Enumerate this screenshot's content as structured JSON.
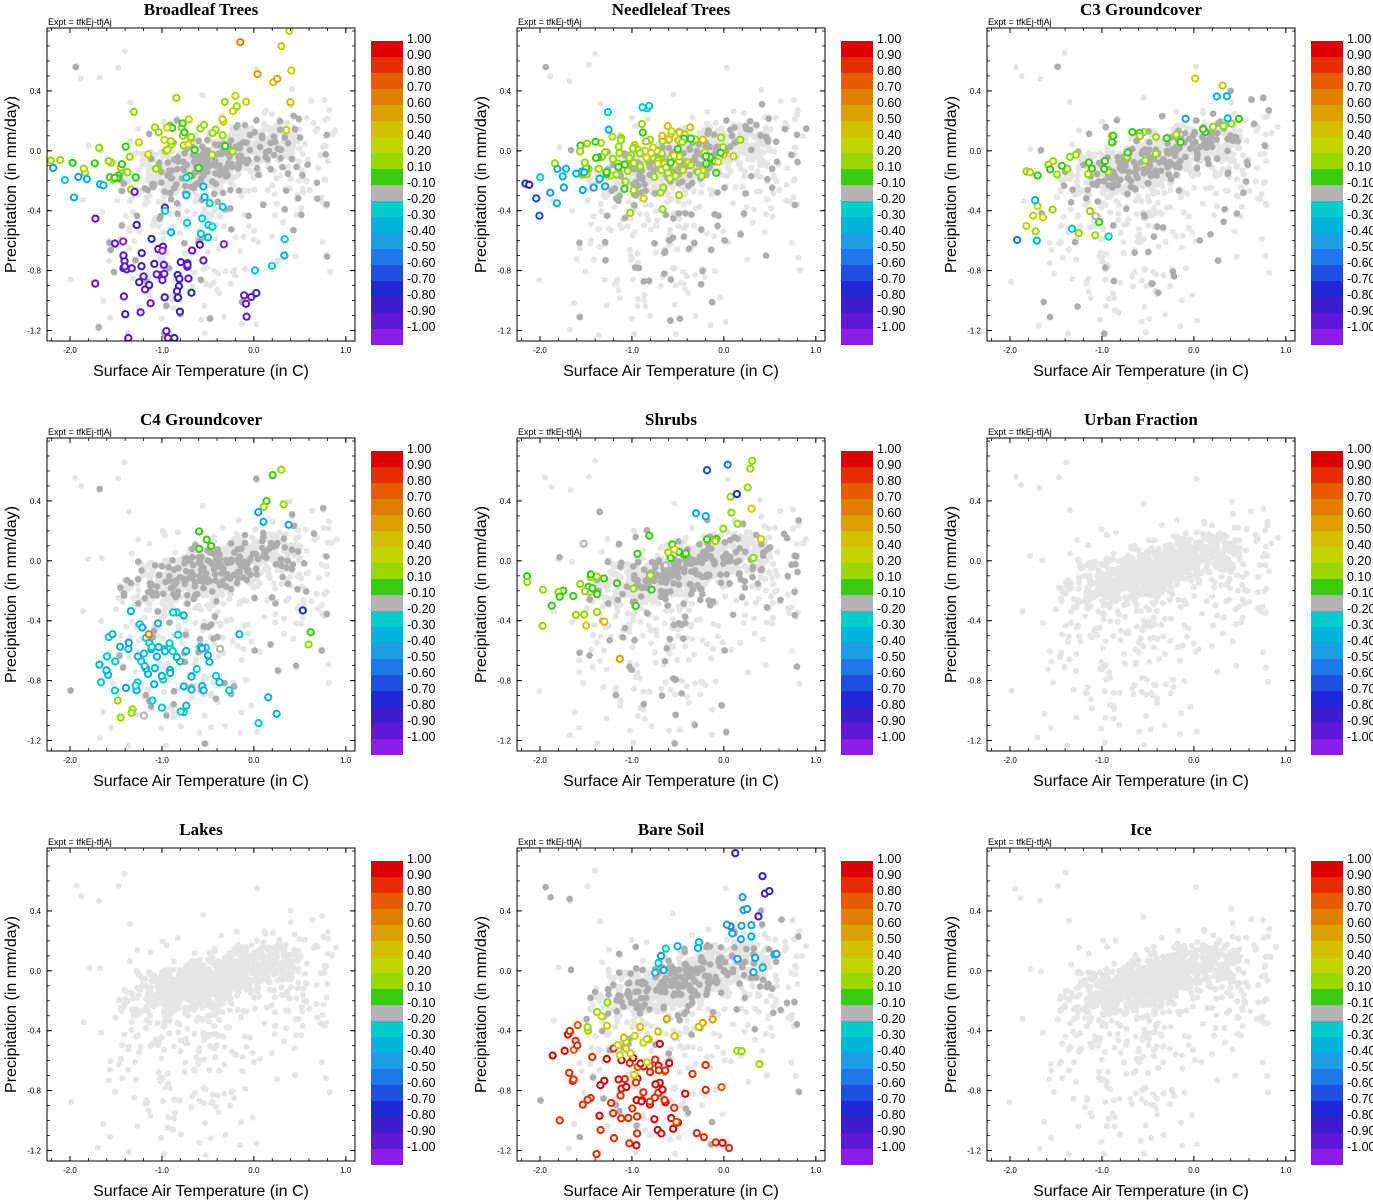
{
  "figure": {
    "x_values_scale": "surface air temperature (C)",
    "y_values_scale": "precipitation (mm/day)"
  },
  "chart_data": [
    {
      "type": "scatter",
      "title": "Broadleaf Trees",
      "subtitle": "Expt = tfkEj-tfjAj",
      "xlabel": "Surface Air Temperature (in C)",
      "ylabel": "Precipitation (in mm/day)",
      "xlim": [
        -2.25,
        1.1
      ],
      "ylim": [
        -1.27,
        0.82
      ],
      "xticks": [
        "-2.0",
        "-1.0",
        "0.0",
        "1.0"
      ],
      "yticks": [
        "0.4",
        "0.0",
        "-0.4",
        "-0.8",
        "-1.2"
      ],
      "seed": 11,
      "colored": [
        {
          "x": -1.55,
          "y": -0.1,
          "c": 0.15,
          "n": 20,
          "sx": 0.35,
          "sy": 0.06
        },
        {
          "x": -0.9,
          "y": 0.05,
          "c": 0.2,
          "n": 30,
          "sx": 0.35,
          "sy": 0.12
        },
        {
          "x": -0.6,
          "y": 0.05,
          "c": 0.35,
          "n": 10,
          "sx": 0.2,
          "sy": 0.1
        },
        {
          "x": -1.85,
          "y": -0.25,
          "c": -0.3,
          "n": 8,
          "sx": 0.25,
          "sy": 0.08
        },
        {
          "x": -1.0,
          "y": -0.8,
          "c": -0.85,
          "n": 55,
          "sx": 0.3,
          "sy": 0.2
        },
        {
          "x": -0.6,
          "y": -0.45,
          "c": -0.25,
          "n": 14,
          "sx": 0.2,
          "sy": 0.12
        },
        {
          "x": 0.0,
          "y": -1.05,
          "c": -0.95,
          "n": 5,
          "sx": 0.1,
          "sy": 0.1
        },
        {
          "x": 0.3,
          "y": 0.45,
          "c": 0.45,
          "n": 6,
          "sx": 0.1,
          "sy": 0.2
        },
        {
          "x": 0.3,
          "y": -0.65,
          "c": -0.2,
          "n": 4,
          "sx": 0.15,
          "sy": 0.1
        },
        {
          "x": 0.1,
          "y": 0.6,
          "c": 0.7,
          "n": 3,
          "sx": 0.15,
          "sy": 0.15
        },
        {
          "x": -0.3,
          "y": 0.3,
          "c": 0.3,
          "n": 5,
          "sx": 0.15,
          "sy": 0.1
        }
      ]
    },
    {
      "type": "scatter",
      "title": "Needleleaf Trees",
      "subtitle": "Expt = tfkEj-tfjAj",
      "xlabel": "Surface Air Temperature (in C)",
      "ylabel": "Precipitation (in mm/day)",
      "xlim": [
        -2.25,
        1.1
      ],
      "ylim": [
        -1.27,
        0.82
      ],
      "xticks": [
        "-2.0",
        "-1.0",
        "0.0",
        "1.0"
      ],
      "yticks": [
        "0.4",
        "0.0",
        "-0.4",
        "-0.8",
        "-1.2"
      ],
      "seed": 23,
      "colored": [
        {
          "x": -0.8,
          "y": -0.05,
          "c": 0.25,
          "n": 65,
          "sx": 0.35,
          "sy": 0.12
        },
        {
          "x": -1.3,
          "y": -0.08,
          "c": 0.15,
          "n": 25,
          "sx": 0.3,
          "sy": 0.08
        },
        {
          "x": -1.65,
          "y": -0.2,
          "c": -0.3,
          "n": 14,
          "sx": 0.25,
          "sy": 0.08
        },
        {
          "x": -2.1,
          "y": -0.3,
          "c": -0.65,
          "n": 4,
          "sx": 0.08,
          "sy": 0.05
        },
        {
          "x": -1.0,
          "y": 0.25,
          "c": -0.25,
          "n": 5,
          "sx": 0.2,
          "sy": 0.1
        },
        {
          "x": -0.6,
          "y": 0.05,
          "c": 0.5,
          "n": 10,
          "sx": 0.2,
          "sy": 0.08
        },
        {
          "x": -0.4,
          "y": 0.0,
          "c": 0.1,
          "n": 12,
          "sx": 0.15,
          "sy": 0.08
        }
      ]
    },
    {
      "type": "scatter",
      "title": "C3 Groundcover",
      "subtitle": "Expt = tfkEj-tfjAj",
      "xlabel": "Surface Air Temperature (in C)",
      "ylabel": "Precipitation (in mm/day)",
      "xlim": [
        -2.25,
        1.1
      ],
      "ylim": [
        -1.27,
        0.82
      ],
      "xticks": [
        "-2.0",
        "-1.0",
        "0.0",
        "1.0"
      ],
      "yticks": [
        "0.4",
        "0.0",
        "-0.4",
        "-0.8",
        "-1.2"
      ],
      "seed": 37,
      "colored": [
        {
          "x": -1.4,
          "y": -0.1,
          "c": 0.15,
          "n": 18,
          "sx": 0.35,
          "sy": 0.06
        },
        {
          "x": -0.5,
          "y": 0.1,
          "c": 0.15,
          "n": 14,
          "sx": 0.35,
          "sy": 0.07
        },
        {
          "x": 0.2,
          "y": 0.2,
          "c": 0.12,
          "n": 6,
          "sx": 0.2,
          "sy": 0.05
        },
        {
          "x": -1.7,
          "y": -0.4,
          "c": 0.3,
          "n": 6,
          "sx": 0.2,
          "sy": 0.08
        },
        {
          "x": -1.3,
          "y": -0.5,
          "c": 0.2,
          "n": 4,
          "sx": 0.2,
          "sy": 0.05
        },
        {
          "x": -1.7,
          "y": -0.55,
          "c": -0.3,
          "n": 3,
          "sx": 0.1,
          "sy": 0.1
        },
        {
          "x": 0.3,
          "y": 0.3,
          "c": -0.3,
          "n": 4,
          "sx": 0.15,
          "sy": 0.08
        },
        {
          "x": 0.2,
          "y": 0.4,
          "c": 0.45,
          "n": 2,
          "sx": 0.1,
          "sy": 0.05
        },
        {
          "x": -1.0,
          "y": -0.55,
          "c": -0.2,
          "n": 3,
          "sx": 0.15,
          "sy": 0.05
        }
      ]
    },
    {
      "type": "scatter",
      "title": "C4 Groundcover",
      "subtitle": "Expt = tfkEj-tfjAj",
      "xlabel": "Surface Air Temperature (in C)",
      "ylabel": "Precipitation (in mm/day)",
      "xlim": [
        -2.25,
        1.1
      ],
      "ylim": [
        -1.27,
        0.82
      ],
      "xticks": [
        "-2.0",
        "-1.0",
        "0.0",
        "1.0"
      ],
      "yticks": [
        "0.4",
        "0.0",
        "-0.4",
        "-0.8",
        "-1.2"
      ],
      "seed": 41,
      "colored": [
        {
          "x": -1.0,
          "y": -0.7,
          "c": -0.25,
          "n": 55,
          "sx": 0.3,
          "sy": 0.18
        },
        {
          "x": -1.5,
          "y": -0.6,
          "c": -0.3,
          "n": 10,
          "sx": 0.1,
          "sy": 0.12
        },
        {
          "x": -1.4,
          "y": -1.0,
          "c": 0.2,
          "n": 4,
          "sx": 0.1,
          "sy": 0.05
        },
        {
          "x": -0.4,
          "y": -0.9,
          "c": -0.25,
          "n": 8,
          "sx": 0.2,
          "sy": 0.2
        },
        {
          "x": 0.2,
          "y": -1.0,
          "c": -0.25,
          "n": 3,
          "sx": 0.1,
          "sy": 0.1
        },
        {
          "x": 0.2,
          "y": 0.4,
          "c": 0.2,
          "n": 5,
          "sx": 0.15,
          "sy": 0.12
        },
        {
          "x": 0.0,
          "y": 0.25,
          "c": -0.3,
          "n": 3,
          "sx": 0.15,
          "sy": 0.08
        },
        {
          "x": 0.5,
          "y": -0.35,
          "c": -0.65,
          "n": 1,
          "sx": 0.05,
          "sy": 0.05
        },
        {
          "x": 0.6,
          "y": -0.6,
          "c": 0.2,
          "n": 2,
          "sx": 0.2,
          "sy": 0.15
        },
        {
          "x": -1.1,
          "y": -0.45,
          "c": 0.7,
          "n": 1,
          "sx": 0.05,
          "sy": 0.05
        },
        {
          "x": -0.55,
          "y": 0.15,
          "c": 0.1,
          "n": 4,
          "sx": 0.1,
          "sy": 0.08
        }
      ]
    },
    {
      "type": "scatter",
      "title": "Shrubs",
      "subtitle": "Expt = tfkEj-tfjAj",
      "xlabel": "Surface Air Temperature (in C)",
      "ylabel": "Precipitation (in mm/day)",
      "xlim": [
        -2.25,
        1.1
      ],
      "ylim": [
        -1.27,
        0.82
      ],
      "xticks": [
        "-2.0",
        "-1.0",
        "0.0",
        "1.0"
      ],
      "yticks": [
        "0.4",
        "0.0",
        "-0.4",
        "-0.8",
        "-1.2"
      ],
      "seed": 53,
      "colored": [
        {
          "x": -1.4,
          "y": -0.15,
          "c": 0.15,
          "n": 22,
          "sx": 0.35,
          "sy": 0.08
        },
        {
          "x": -0.6,
          "y": 0.05,
          "c": 0.12,
          "n": 14,
          "sx": 0.3,
          "sy": 0.08
        },
        {
          "x": -1.9,
          "y": -0.3,
          "c": 0.2,
          "n": 4,
          "sx": 0.15,
          "sy": 0.08
        },
        {
          "x": 0.1,
          "y": 0.25,
          "c": 0.3,
          "n": 8,
          "sx": 0.25,
          "sy": 0.15
        },
        {
          "x": -0.2,
          "y": 0.4,
          "c": -0.4,
          "n": 4,
          "sx": 0.15,
          "sy": 0.1
        },
        {
          "x": 0.2,
          "y": 0.45,
          "c": -0.85,
          "n": 1,
          "sx": 0.05,
          "sy": 0.05
        },
        {
          "x": -1.5,
          "y": -0.45,
          "c": 0.4,
          "n": 2,
          "sx": 0.1,
          "sy": 0.05
        },
        {
          "x": -1.0,
          "y": -0.55,
          "c": 0.6,
          "n": 1,
          "sx": 0.05,
          "sy": 0.05
        },
        {
          "x": 0.35,
          "y": 0.55,
          "c": 0.2,
          "n": 3,
          "sx": 0.1,
          "sy": 0.1
        }
      ]
    },
    {
      "type": "scatter",
      "title": "Urban Fraction",
      "subtitle": "Expt = tfkEj-tfjAj",
      "xlabel": "Surface Air Temperature (in C)",
      "ylabel": "Precipitation (in mm/day)",
      "xlim": [
        -2.25,
        1.1
      ],
      "ylim": [
        -1.27,
        0.82
      ],
      "xticks": [
        "-2.0",
        "-1.0",
        "0.0",
        "1.0"
      ],
      "yticks": [
        "0.4",
        "0.0",
        "-0.4",
        "-0.8",
        "-1.2"
      ],
      "seed": 61,
      "colored": []
    },
    {
      "type": "scatter",
      "title": "Lakes",
      "subtitle": "Expt = tfkEj-tfjAj",
      "xlabel": "Surface Air Temperature (in C)",
      "ylabel": "Precipitation (in mm/day)",
      "xlim": [
        -2.25,
        1.1
      ],
      "ylim": [
        -1.27,
        0.82
      ],
      "xticks": [
        "-2.0",
        "-1.0",
        "0.0",
        "1.0"
      ],
      "yticks": [
        "0.4",
        "0.0",
        "-0.4",
        "-0.8",
        "-1.2"
      ],
      "seed": 71,
      "colored": []
    },
    {
      "type": "scatter",
      "title": "Bare Soil",
      "subtitle": "Expt = tfkEj-tfjAj",
      "xlabel": "Surface Air Temperature (in C)",
      "ylabel": "Precipitation (in mm/day)",
      "xlim": [
        -2.25,
        1.1
      ],
      "ylim": [
        -1.27,
        0.82
      ],
      "xticks": [
        "-2.0",
        "-1.0",
        "0.0",
        "1.0"
      ],
      "yticks": [
        "0.4",
        "0.0",
        "-0.4",
        "-0.8",
        "-1.2"
      ],
      "seed": 83,
      "colored": [
        {
          "x": -1.0,
          "y": -0.8,
          "c": 0.95,
          "n": 70,
          "sx": 0.35,
          "sy": 0.18
        },
        {
          "x": -1.7,
          "y": -0.5,
          "c": 0.95,
          "n": 10,
          "sx": 0.2,
          "sy": 0.1
        },
        {
          "x": -0.1,
          "y": -1.05,
          "c": 0.95,
          "n": 6,
          "sx": 0.2,
          "sy": 0.1
        },
        {
          "x": -1.0,
          "y": -0.45,
          "c": 0.4,
          "n": 14,
          "sx": 0.2,
          "sy": 0.08
        },
        {
          "x": -0.6,
          "y": -0.35,
          "c": 0.55,
          "n": 6,
          "sx": 0.2,
          "sy": 0.08
        },
        {
          "x": 0.2,
          "y": 0.2,
          "c": -0.4,
          "n": 16,
          "sx": 0.25,
          "sy": 0.15
        },
        {
          "x": 0.4,
          "y": 0.55,
          "c": -0.75,
          "n": 4,
          "sx": 0.1,
          "sy": 0.1
        },
        {
          "x": 0.25,
          "y": 0.8,
          "c": -0.85,
          "n": 1,
          "sx": 0.05,
          "sy": 0.05
        },
        {
          "x": -0.5,
          "y": 0.1,
          "c": -0.3,
          "n": 8,
          "sx": 0.25,
          "sy": 0.08
        },
        {
          "x": -1.3,
          "y": -0.3,
          "c": 0.2,
          "n": 5,
          "sx": 0.15,
          "sy": 0.08
        },
        {
          "x": 0.3,
          "y": -0.6,
          "c": 0.2,
          "n": 3,
          "sx": 0.15,
          "sy": 0.1
        }
      ]
    },
    {
      "type": "scatter",
      "title": "Ice",
      "subtitle": "Expt = tfkEj-tfjAj",
      "xlabel": "Surface Air Temperature (in C)",
      "ylabel": "Precipitation (in mm/day)",
      "xlim": [
        -2.25,
        1.1
      ],
      "ylim": [
        -1.27,
        0.82
      ],
      "xticks": [
        "-2.0",
        "-1.0",
        "0.0",
        "1.0"
      ],
      "yticks": [
        "0.4",
        "0.0",
        "-0.4",
        "-0.8",
        "-1.2"
      ],
      "seed": 97,
      "colored": []
    }
  ],
  "colorbar": {
    "labels": [
      "1.00",
      "0.90",
      "0.80",
      "0.70",
      "0.60",
      "0.50",
      "0.40",
      "0.20",
      "0.10",
      "-0.10",
      "-0.20",
      "-0.30",
      "-0.40",
      "-0.50",
      "-0.60",
      "-0.70",
      "-0.80",
      "-0.90",
      "-1.00"
    ],
    "colors": [
      "#dd0000",
      "#e52d00",
      "#e65a00",
      "#e07e00",
      "#d9a000",
      "#d2c000",
      "#c2d400",
      "#98d800",
      "#38cc10",
      "#b4b4b4",
      "#00cccc",
      "#00b4dc",
      "#1e9ce4",
      "#1e78e8",
      "#1e50e0",
      "#2028d4",
      "#3c1ccc",
      "#6018d8",
      "#8a1ee8"
    ],
    "background_light": "#e5e5e5",
    "background_dark": "#adadad"
  }
}
